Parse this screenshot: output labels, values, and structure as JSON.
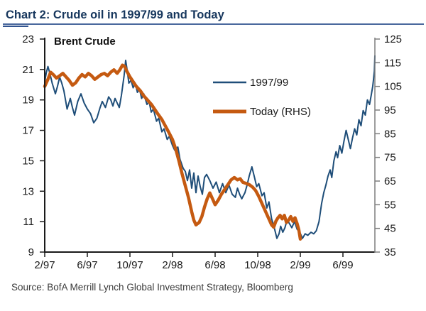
{
  "header": {
    "title": "Chart 2: Crude oil in 1997/99 and Today"
  },
  "source": {
    "text": "Source: BofA Merrill Lynch Global Investment Strategy, Bloomberg"
  },
  "colors": {
    "title_navy": "#17375D",
    "rule_blue": "#31538F",
    "axis_black": "#1a1a1a",
    "axis_gray": "#7f7f7f",
    "series_blue": "#1F4E79",
    "series_orange": "#C55A11"
  },
  "chart_data": {
    "type": "line",
    "title": "Chart 2: Crude oil in 1997/99 and Today",
    "plot_label": "Brent Crude",
    "grid": false,
    "legend_position": "upper-center-inside",
    "x_axis": {
      "tick_labels": [
        "2/97",
        "6/97",
        "10/97",
        "2/98",
        "6/98",
        "10/98",
        "2/99",
        "6/99"
      ],
      "tick_months": [
        0,
        4,
        8,
        12,
        16,
        20,
        24,
        28
      ],
      "months_total": 31
    },
    "left_axis": {
      "label": "",
      "min": 9,
      "max": 23,
      "ticks": [
        23,
        21,
        19,
        17,
        15,
        13,
        11,
        9
      ]
    },
    "right_axis": {
      "label": "",
      "min": 35,
      "max": 125,
      "ticks": [
        125,
        115,
        105,
        95,
        85,
        75,
        65,
        55,
        45,
        35
      ]
    },
    "series": [
      {
        "name": "1997/99",
        "axis": "left",
        "color": "#1F4E79",
        "width": 2,
        "points": [
          [
            0,
            20.2
          ],
          [
            0.15,
            20.8
          ],
          [
            0.3,
            21.2
          ],
          [
            0.5,
            20.7
          ],
          [
            0.7,
            20.1
          ],
          [
            1,
            19.4
          ],
          [
            1.2,
            19.9
          ],
          [
            1.4,
            20.5
          ],
          [
            1.6,
            20.1
          ],
          [
            1.8,
            19.6
          ],
          [
            2.1,
            18.4
          ],
          [
            2.4,
            19.1
          ],
          [
            2.6,
            18.5
          ],
          [
            2.8,
            18.0
          ],
          [
            3.1,
            18.9
          ],
          [
            3.4,
            19.4
          ],
          [
            3.7,
            18.8
          ],
          [
            4,
            18.4
          ],
          [
            4.3,
            18.1
          ],
          [
            4.6,
            17.5
          ],
          [
            4.9,
            17.8
          ],
          [
            5.2,
            18.5
          ],
          [
            5.4,
            18.9
          ],
          [
            5.7,
            18.5
          ],
          [
            6,
            19.2
          ],
          [
            6.2,
            19.0
          ],
          [
            6.4,
            18.6
          ],
          [
            6.6,
            19.1
          ],
          [
            6.8,
            18.8
          ],
          [
            7,
            18.5
          ],
          [
            7.2,
            19.3
          ],
          [
            7.45,
            20.6
          ],
          [
            7.6,
            21.6
          ],
          [
            7.75,
            20.9
          ],
          [
            7.9,
            20.1
          ],
          [
            8.1,
            20.3
          ],
          [
            8.3,
            19.8
          ],
          [
            8.5,
            20.1
          ],
          [
            8.7,
            19.5
          ],
          [
            8.9,
            19.7
          ],
          [
            9.1,
            19.1
          ],
          [
            9.3,
            19.4
          ],
          [
            9.6,
            18.7
          ],
          [
            9.8,
            18.9
          ],
          [
            10,
            18.2
          ],
          [
            10.2,
            18.4
          ],
          [
            10.5,
            17.6
          ],
          [
            10.7,
            17.8
          ],
          [
            11,
            16.9
          ],
          [
            11.2,
            17.1
          ],
          [
            11.5,
            16.4
          ],
          [
            11.7,
            16.6
          ],
          [
            12,
            16.0
          ],
          [
            12.2,
            15.7
          ],
          [
            12.5,
            15.9
          ],
          [
            12.7,
            15.1
          ],
          [
            13,
            14.5
          ],
          [
            13.2,
            14.3
          ],
          [
            13.4,
            13.7
          ],
          [
            13.6,
            14.4
          ],
          [
            13.8,
            13.2
          ],
          [
            14,
            14.2
          ],
          [
            14.2,
            12.9
          ],
          [
            14.4,
            14.0
          ],
          [
            14.6,
            13.3
          ],
          [
            14.8,
            12.8
          ],
          [
            15,
            13.9
          ],
          [
            15.2,
            14.1
          ],
          [
            15.5,
            13.7
          ],
          [
            15.8,
            13.2
          ],
          [
            16.1,
            13.6
          ],
          [
            16.4,
            12.9
          ],
          [
            16.7,
            13.5
          ],
          [
            17,
            12.9
          ],
          [
            17.3,
            13.4
          ],
          [
            17.6,
            12.8
          ],
          [
            17.9,
            12.6
          ],
          [
            18.1,
            13.2
          ],
          [
            18.3,
            12.8
          ],
          [
            18.5,
            12.5
          ],
          [
            18.8,
            12.9
          ],
          [
            19,
            13.4
          ],
          [
            19.2,
            14.0
          ],
          [
            19.45,
            14.6
          ],
          [
            19.7,
            13.9
          ],
          [
            19.9,
            13.3
          ],
          [
            20.1,
            13.5
          ],
          [
            20.4,
            12.7
          ],
          [
            20.6,
            12.9
          ],
          [
            20.85,
            11.9
          ],
          [
            21.05,
            12.3
          ],
          [
            21.3,
            11.2
          ],
          [
            21.55,
            10.6
          ],
          [
            21.8,
            9.9
          ],
          [
            22,
            10.2
          ],
          [
            22.15,
            10.7
          ],
          [
            22.35,
            10.3
          ],
          [
            22.55,
            10.6
          ],
          [
            22.75,
            11.1
          ],
          [
            22.95,
            10.9
          ],
          [
            23.2,
            10.6
          ],
          [
            23.45,
            11.0
          ],
          [
            23.7,
            10.5
          ],
          [
            23.95,
            10.3
          ],
          [
            24.2,
            9.9
          ],
          [
            24.45,
            10.2
          ],
          [
            24.7,
            10.1
          ],
          [
            25,
            10.3
          ],
          [
            25.25,
            10.2
          ],
          [
            25.5,
            10.4
          ],
          [
            25.75,
            11.0
          ],
          [
            26,
            12.2
          ],
          [
            26.2,
            12.9
          ],
          [
            26.4,
            13.4
          ],
          [
            26.6,
            14.0
          ],
          [
            26.8,
            14.4
          ],
          [
            26.95,
            13.9
          ],
          [
            27.15,
            15.0
          ],
          [
            27.35,
            15.6
          ],
          [
            27.5,
            15.2
          ],
          [
            27.7,
            16.0
          ],
          [
            27.9,
            15.5
          ],
          [
            28.1,
            16.3
          ],
          [
            28.3,
            17.0
          ],
          [
            28.5,
            16.4
          ],
          [
            28.7,
            15.8
          ],
          [
            28.9,
            16.5
          ],
          [
            29.1,
            17.1
          ],
          [
            29.3,
            16.7
          ],
          [
            29.5,
            17.7
          ],
          [
            29.7,
            17.3
          ],
          [
            29.9,
            18.3
          ],
          [
            30.1,
            18.0
          ],
          [
            30.3,
            19.0
          ],
          [
            30.5,
            18.7
          ],
          [
            30.65,
            19.3
          ],
          [
            30.8,
            19.9
          ],
          [
            30.88,
            20.4
          ],
          [
            30.95,
            20.9
          ],
          [
            31,
            21.9
          ]
        ]
      },
      {
        "name": "Today (RHS)",
        "axis": "right",
        "color": "#C55A11",
        "width": 4.5,
        "points": [
          [
            0,
            105
          ],
          [
            0.3,
            108
          ],
          [
            0.55,
            111
          ],
          [
            0.8,
            110
          ],
          [
            1.1,
            108.5
          ],
          [
            1.4,
            109.5
          ],
          [
            1.7,
            110.5
          ],
          [
            2,
            109
          ],
          [
            2.3,
            107.5
          ],
          [
            2.6,
            105.5
          ],
          [
            2.9,
            106.5
          ],
          [
            3.2,
            108.5
          ],
          [
            3.5,
            110
          ],
          [
            3.8,
            109
          ],
          [
            4.1,
            110.5
          ],
          [
            4.4,
            109.5
          ],
          [
            4.7,
            108
          ],
          [
            5,
            109
          ],
          [
            5.3,
            110
          ],
          [
            5.6,
            110.5
          ],
          [
            5.9,
            109.5
          ],
          [
            6.2,
            111
          ],
          [
            6.5,
            112
          ],
          [
            6.8,
            110.5
          ],
          [
            7.05,
            112
          ],
          [
            7.3,
            114
          ],
          [
            7.5,
            113.5
          ],
          [
            7.7,
            111.5
          ],
          [
            8,
            109
          ],
          [
            8.3,
            107
          ],
          [
            8.6,
            105
          ],
          [
            9,
            103
          ],
          [
            9.3,
            101
          ],
          [
            9.6,
            99.5
          ],
          [
            10,
            97.5
          ],
          [
            10.3,
            95.5
          ],
          [
            10.6,
            93.5
          ],
          [
            11,
            91
          ],
          [
            11.3,
            88.5
          ],
          [
            11.6,
            86
          ],
          [
            12,
            82.5
          ],
          [
            12.3,
            78.5
          ],
          [
            12.6,
            73.5
          ],
          [
            12.9,
            68
          ],
          [
            13.2,
            63
          ],
          [
            13.5,
            58
          ],
          [
            13.8,
            52
          ],
          [
            14,
            48.5
          ],
          [
            14.2,
            46.5
          ],
          [
            14.5,
            47.5
          ],
          [
            14.75,
            50
          ],
          [
            15,
            54
          ],
          [
            15.25,
            57.5
          ],
          [
            15.5,
            60
          ],
          [
            15.75,
            57.5
          ],
          [
            16,
            55
          ],
          [
            16.3,
            57
          ],
          [
            16.6,
            59.5
          ],
          [
            16.9,
            61.5
          ],
          [
            17.2,
            63.5
          ],
          [
            17.5,
            65.5
          ],
          [
            17.8,
            66.5
          ],
          [
            18.1,
            65.5
          ],
          [
            18.35,
            66
          ],
          [
            18.6,
            64.5
          ],
          [
            18.9,
            64
          ],
          [
            19.2,
            63.5
          ],
          [
            19.5,
            62.5
          ],
          [
            19.8,
            61
          ],
          [
            20.1,
            58.5
          ],
          [
            20.4,
            55.5
          ],
          [
            20.7,
            52.5
          ],
          [
            21,
            49.5
          ],
          [
            21.3,
            46.5
          ],
          [
            21.5,
            45.5
          ],
          [
            21.7,
            48
          ],
          [
            21.9,
            49.5
          ],
          [
            22.1,
            50.5
          ],
          [
            22.3,
            49
          ],
          [
            22.5,
            50.5
          ],
          [
            22.7,
            47.5
          ],
          [
            22.9,
            48.5
          ],
          [
            23.1,
            50
          ],
          [
            23.3,
            48
          ],
          [
            23.5,
            49.5
          ],
          [
            23.7,
            47
          ],
          [
            23.85,
            44.5
          ],
          [
            24,
            40.5
          ]
        ]
      }
    ]
  }
}
